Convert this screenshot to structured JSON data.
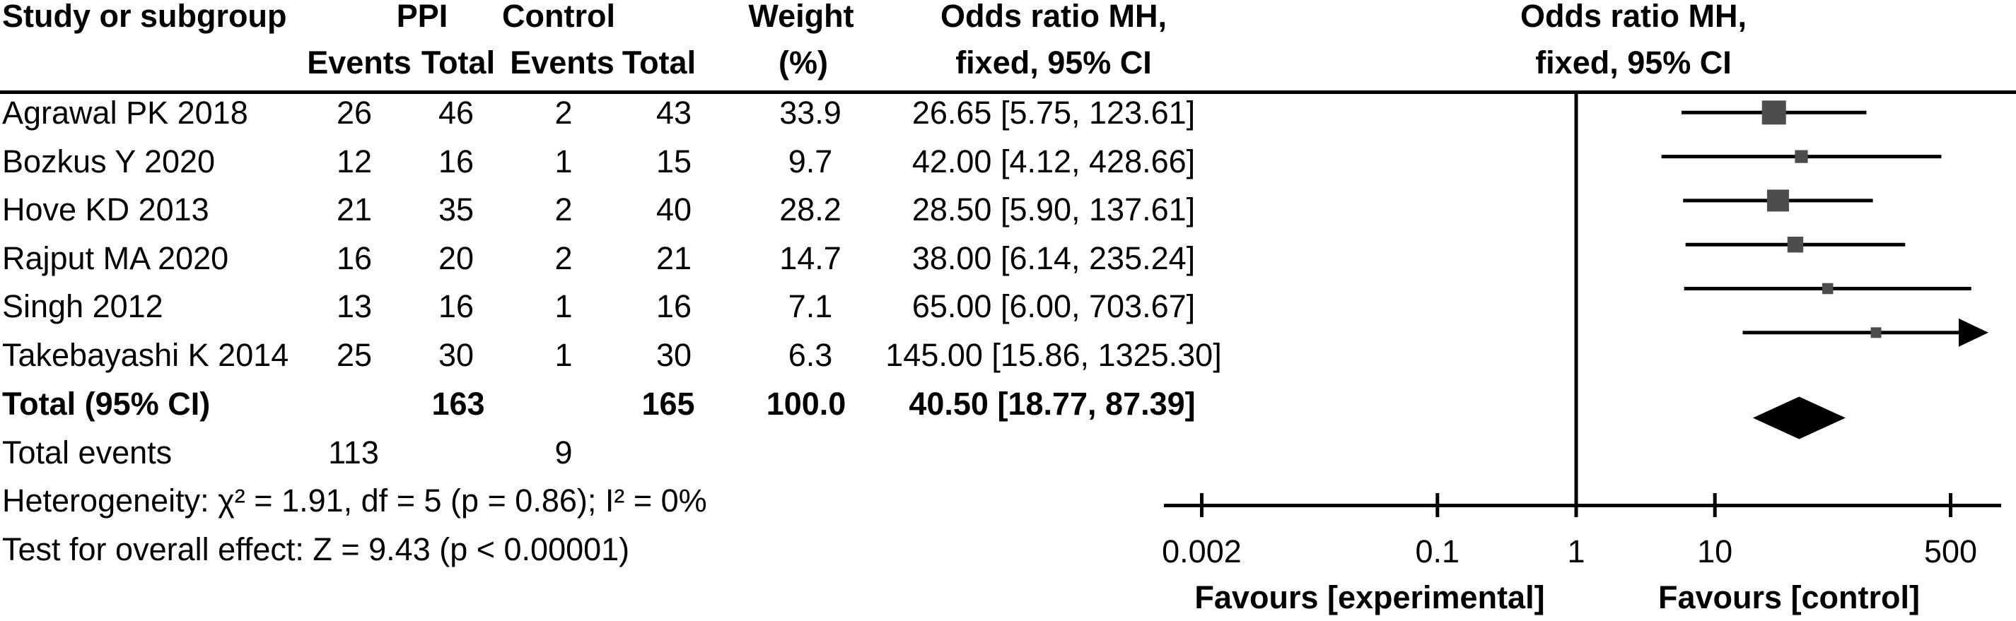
{
  "header": {
    "study_col": "Study or subgroup",
    "group1": "PPI",
    "group2": "Control",
    "sub_events": "Events",
    "sub_total": "Total",
    "weight_line1": "Weight",
    "weight_line2": "(%)",
    "or_col_line1": "Odds ratio MH,",
    "or_col_line2": "fixed, 95% CI",
    "plot_col_line1": "Odds ratio MH,",
    "plot_col_line2": "fixed, 95% CI"
  },
  "table": {
    "studies": [
      {
        "name": "Agrawal PK 2018",
        "ppi_events": "26",
        "ppi_total": "46",
        "ctl_events": "2",
        "ctl_total": "43",
        "weight": "33.9",
        "or_ci": "26.65 [5.75, 123.61]"
      },
      {
        "name": "Bozkus Y 2020",
        "ppi_events": "12",
        "ppi_total": "16",
        "ctl_events": "1",
        "ctl_total": "15",
        "weight": "9.7",
        "or_ci": "42.00 [4.12, 428.66]"
      },
      {
        "name": "Hove KD 2013",
        "ppi_events": "21",
        "ppi_total": "35",
        "ctl_events": "2",
        "ctl_total": "40",
        "weight": "28.2",
        "or_ci": "28.50 [5.90, 137.61]"
      },
      {
        "name": "Rajput MA 2020",
        "ppi_events": "16",
        "ppi_total": "20",
        "ctl_events": "2",
        "ctl_total": "21",
        "weight": "14.7",
        "or_ci": "38.00 [6.14, 235.24]"
      },
      {
        "name": "Singh 2012",
        "ppi_events": "13",
        "ppi_total": "16",
        "ctl_events": "1",
        "ctl_total": "16",
        "weight": "7.1",
        "or_ci": "65.00 [6.00, 703.67]"
      },
      {
        "name": "Takebayashi K 2014",
        "ppi_events": "25",
        "ppi_total": "30",
        "ctl_events": "1",
        "ctl_total": "30",
        "weight": "6.3",
        "or_ci": "145.00 [15.86, 1325.30]"
      }
    ],
    "total_row": {
      "label": "Total (95% CI)",
      "ppi_total": "163",
      "ctl_total": "165",
      "weight": "100.0",
      "or_ci": "40.50 [18.77, 87.39]"
    },
    "total_events": {
      "label": "Total events",
      "ppi": "113",
      "ctl": "9"
    },
    "heterogeneity": "Heterogeneity: χ² = 1.91, df = 5 (p = 0.86); I² = 0%",
    "overall_effect": "Test for overall effect: Z = 9.43 (p < 0.00001)"
  },
  "chart_data": {
    "type": "forest",
    "title": "Odds ratio MH, fixed, 95% CI",
    "x_scale": "log",
    "x_ticks": [
      {
        "value": 0.002,
        "label": "0.002"
      },
      {
        "value": 0.1,
        "label": "0.1"
      },
      {
        "value": 1,
        "label": "1"
      },
      {
        "value": 10,
        "label": "10"
      },
      {
        "value": 500,
        "label": "500"
      }
    ],
    "axis_min": 0.0011,
    "axis_max": 1150,
    "studies": [
      {
        "name": "Agrawal PK 2018",
        "or": 26.65,
        "ci_low": 5.75,
        "ci_high": 123.61,
        "weight_pct": 33.9
      },
      {
        "name": "Bozkus Y 2020",
        "or": 42.0,
        "ci_low": 4.12,
        "ci_high": 428.66,
        "weight_pct": 9.7
      },
      {
        "name": "Hove KD 2013",
        "or": 28.5,
        "ci_low": 5.9,
        "ci_high": 137.61,
        "weight_pct": 28.2
      },
      {
        "name": "Rajput MA 2020",
        "or": 38.0,
        "ci_low": 6.14,
        "ci_high": 235.24,
        "weight_pct": 14.7
      },
      {
        "name": "Singh 2012",
        "or": 65.0,
        "ci_low": 6.0,
        "ci_high": 703.67,
        "weight_pct": 7.1
      },
      {
        "name": "Takebayashi K 2014",
        "or": 145.0,
        "ci_low": 15.86,
        "ci_high": 1325.3,
        "weight_pct": 6.3
      }
    ],
    "total": {
      "or": 40.5,
      "ci_low": 18.77,
      "ci_high": 87.39,
      "weight_pct": 100.0
    },
    "legend_left": "Favours [experimental]",
    "legend_right": "Favours [control]",
    "colors": {
      "square": "#4d4d4d",
      "line": "#000000",
      "diamond": "#000000"
    }
  }
}
